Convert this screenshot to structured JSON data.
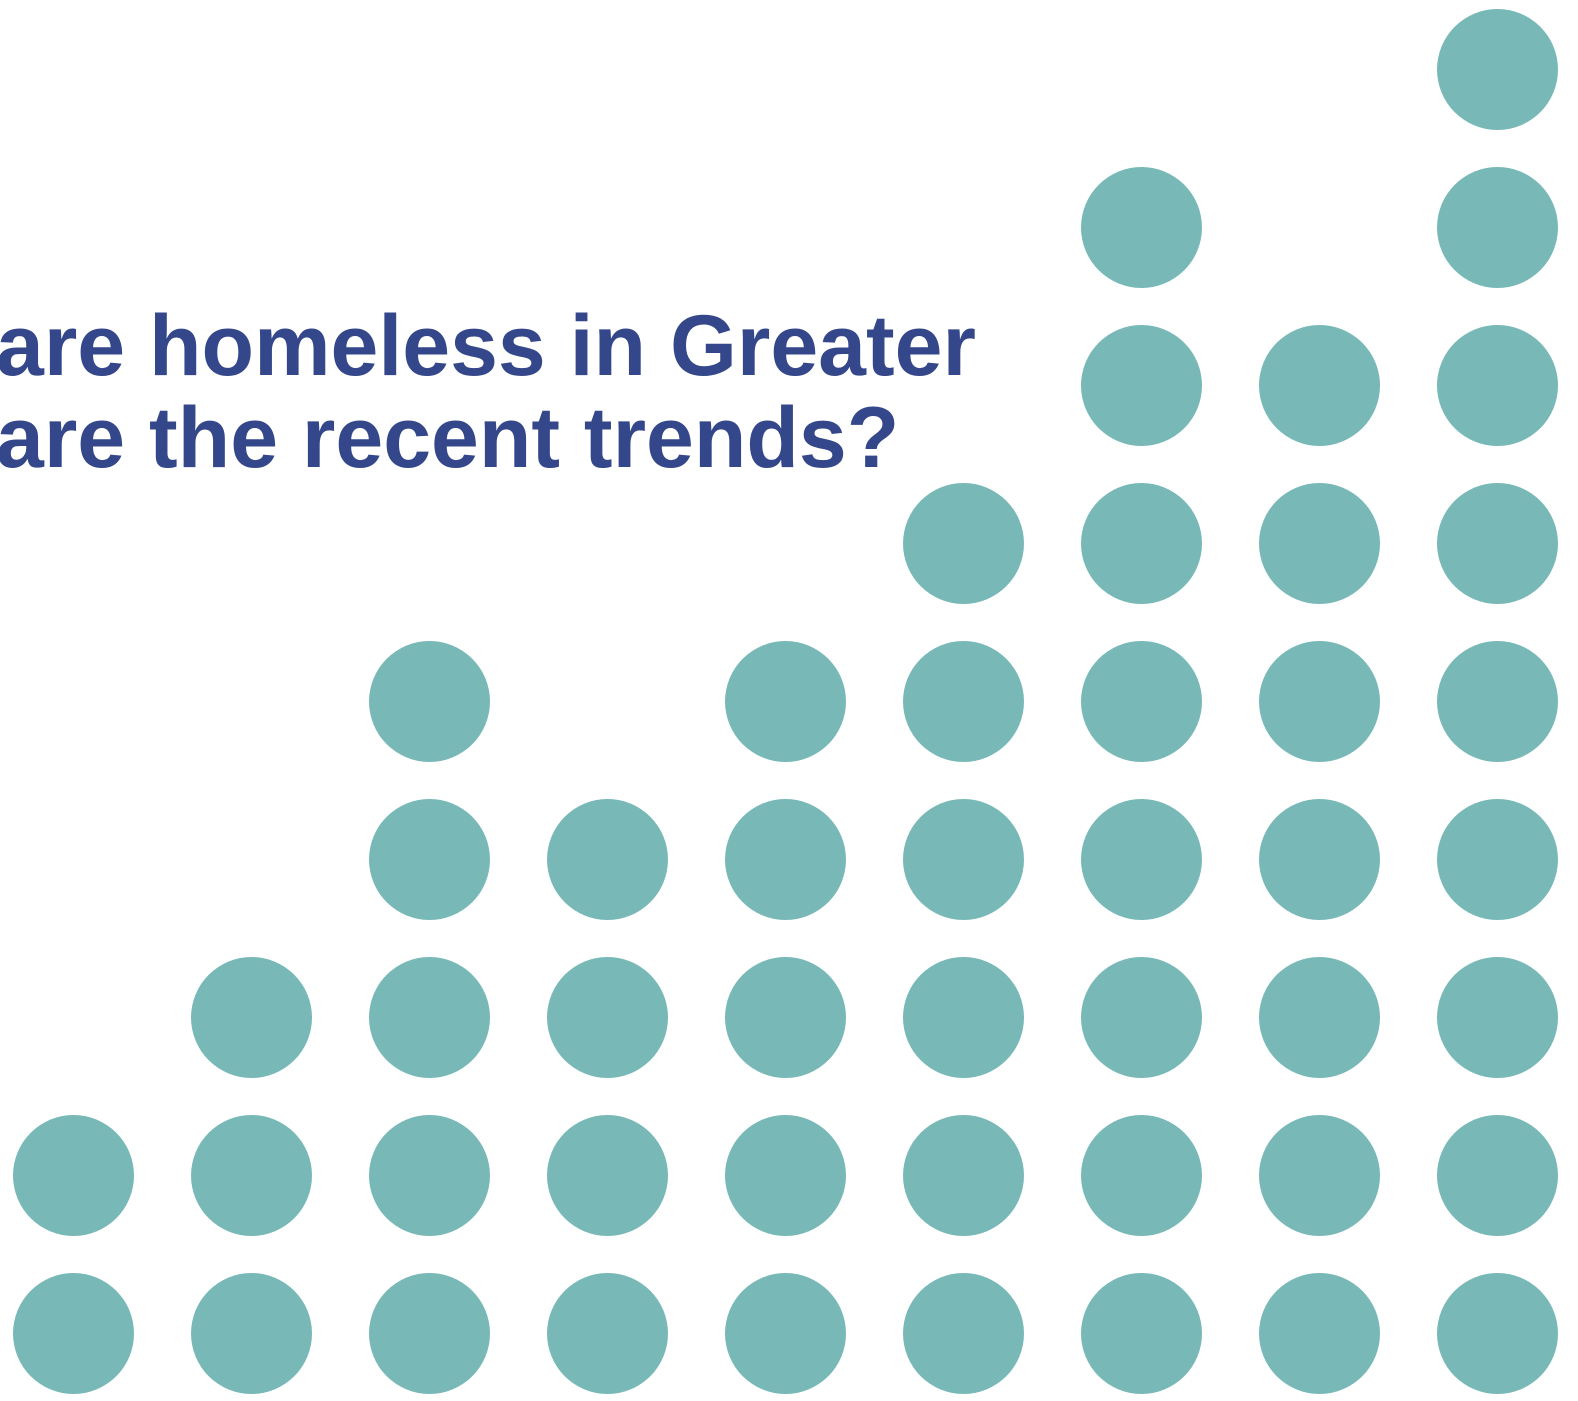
{
  "title": {
    "line1": "are homeless in Greater",
    "line2": "are the recent trends?"
  },
  "colors": {
    "title": "#34478a",
    "dot": "#78b9b8"
  },
  "dot_columns": [
    2,
    3,
    5,
    4,
    5,
    6,
    8,
    7,
    9
  ]
}
